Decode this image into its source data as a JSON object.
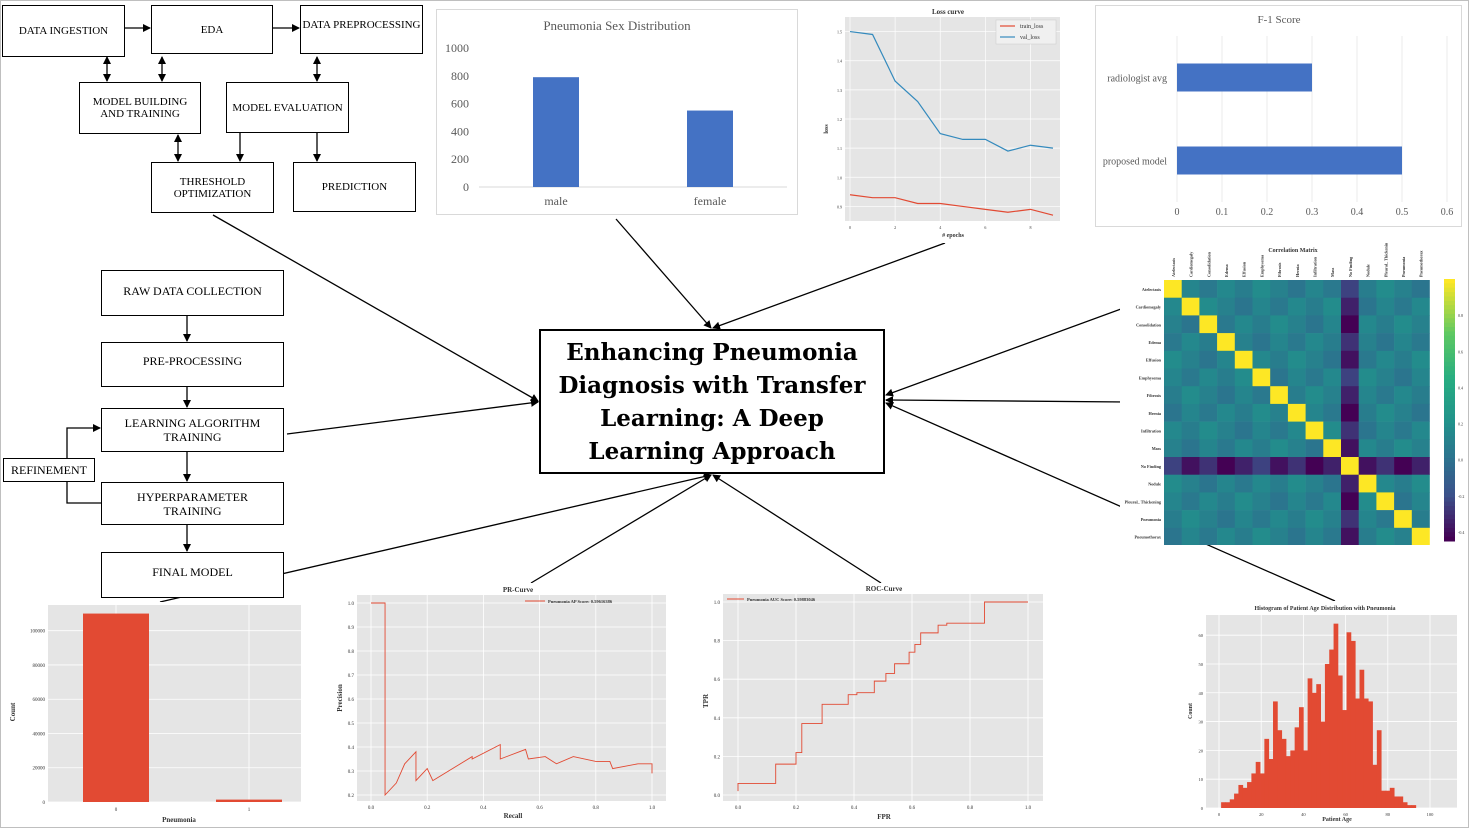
{
  "title": "Enhancing Pneumonia Diagnosis with Transfer Learning: A Deep Learning Approach",
  "pipeline": {
    "data_ingestion": "DATA INGESTION",
    "eda": "EDA",
    "data_preprocessing": "DATA PREPROCESSING",
    "model_building": "MODEL BUILDING AND TRAINING",
    "model_evaluation": "MODEL EVALUATION",
    "threshold": "THRESHOLD OPTIMIZATION",
    "prediction": "PREDICTION"
  },
  "workflow": {
    "raw_data": "RAW DATA COLLECTION",
    "preprocessing": "PRE-PROCESSING",
    "learning": "LEARNING ALGORITHM TRAINING",
    "refinement": "REFINEMENT",
    "hyperparameter": "HYPERPARAMETER TRAINING",
    "final_model": "FINAL MODEL"
  },
  "colors": {
    "blue_bar": "#4472c4",
    "red_bar": "#e24a33",
    "panel_bg": "#e5e5e5",
    "loss_train": "#e24a33",
    "loss_val": "#348abd"
  },
  "chart_data": [
    {
      "id": "sex",
      "type": "bar",
      "title": "Pneumonia Sex Distribution",
      "categories": [
        "male",
        "female"
      ],
      "values": [
        790,
        550
      ],
      "ylim": [
        0,
        1000
      ],
      "yticks": [
        "0",
        "200",
        "400",
        "600",
        "800",
        "1000"
      ]
    },
    {
      "id": "loss",
      "type": "line",
      "title": "Loss curve",
      "xlabel": "# epochs",
      "ylabel": "loss",
      "x": [
        0,
        1,
        2,
        3,
        4,
        5,
        6,
        7,
        8,
        9
      ],
      "series": [
        {
          "name": "train_loss",
          "values": [
            0.94,
            0.93,
            0.93,
            0.91,
            0.91,
            0.9,
            0.89,
            0.88,
            0.89,
            0.87
          ]
        },
        {
          "name": "val_loss",
          "values": [
            1.5,
            1.49,
            1.33,
            1.26,
            1.15,
            1.13,
            1.13,
            1.09,
            1.11,
            1.1
          ]
        }
      ],
      "xticks": [
        "0",
        "2",
        "4",
        "6",
        "8"
      ],
      "yticks": [
        "0.9",
        "1.0",
        "1.1",
        "1.2",
        "1.3",
        "1.4",
        "1.5"
      ],
      "ylim": [
        0.85,
        1.55
      ]
    },
    {
      "id": "f1",
      "type": "bar",
      "title": "F-1 Score",
      "categories": [
        "radiologist avg",
        "proposed model"
      ],
      "values": [
        0.3,
        0.5
      ],
      "xlim": [
        0,
        0.6
      ],
      "xticks": [
        "0",
        "0.1",
        "0.2",
        "0.3",
        "0.4",
        "0.5",
        "0.6"
      ]
    },
    {
      "id": "corr",
      "type": "heatmap",
      "title": "Correlation Matrix",
      "labels": [
        "Atelectasis",
        "Cardiomegaly",
        "Consolidation",
        "Edema",
        "Effusion",
        "Emphysema",
        "Fibrosis",
        "Hernia",
        "Infiltration",
        "Mass",
        "No Finding",
        "Nodule",
        "Pleural_ Thickening",
        "Pneumonia",
        "Pneumothorax"
      ],
      "colorbar_ticks": [
        "0.8",
        "0.6",
        "0.4",
        "0.2",
        "0.0",
        "-0.2",
        "-0.4"
      ]
    },
    {
      "id": "count",
      "type": "bar",
      "xlabel": "Pneumonia",
      "ylabel": "Count",
      "categories": [
        "0",
        "1"
      ],
      "values": [
        110000,
        1400
      ],
      "yticks": [
        "0",
        "20000",
        "40000",
        "60000",
        "80000",
        "100000"
      ]
    },
    {
      "id": "pr",
      "type": "line",
      "title": "PR-Curve",
      "xlabel": "Recall",
      "ylabel": "Precision",
      "legend": "Pneumonia AP Score: 0.59616386",
      "xticks": [
        "0.0",
        "0.2",
        "0.4",
        "0.6",
        "0.8",
        "1.0"
      ],
      "yticks": [
        "0.2",
        "0.3",
        "0.4",
        "0.5",
        "0.6",
        "0.7",
        "0.8",
        "0.9",
        "1.0"
      ]
    },
    {
      "id": "roc",
      "type": "line",
      "title": "ROC-Curve",
      "xlabel": "FPR",
      "ylabel": "TPR",
      "legend": "Pneumonia AUC Score: 0.59883046",
      "xticks": [
        "0.0",
        "0.2",
        "0.4",
        "0.6",
        "0.8",
        "1.0"
      ],
      "yticks": [
        "0.0",
        "0.2",
        "0.4",
        "0.6",
        "0.8",
        "1.0"
      ]
    },
    {
      "id": "age",
      "type": "bar",
      "title": "Histogram of Patient Age Distribution with Pneumonia",
      "xlabel": "Patient Age",
      "ylabel": "Count",
      "xticks": [
        "0",
        "20",
        "40",
        "60",
        "80",
        "100"
      ],
      "yticks": [
        "0",
        "10",
        "20",
        "30",
        "40",
        "50",
        "60"
      ]
    }
  ]
}
